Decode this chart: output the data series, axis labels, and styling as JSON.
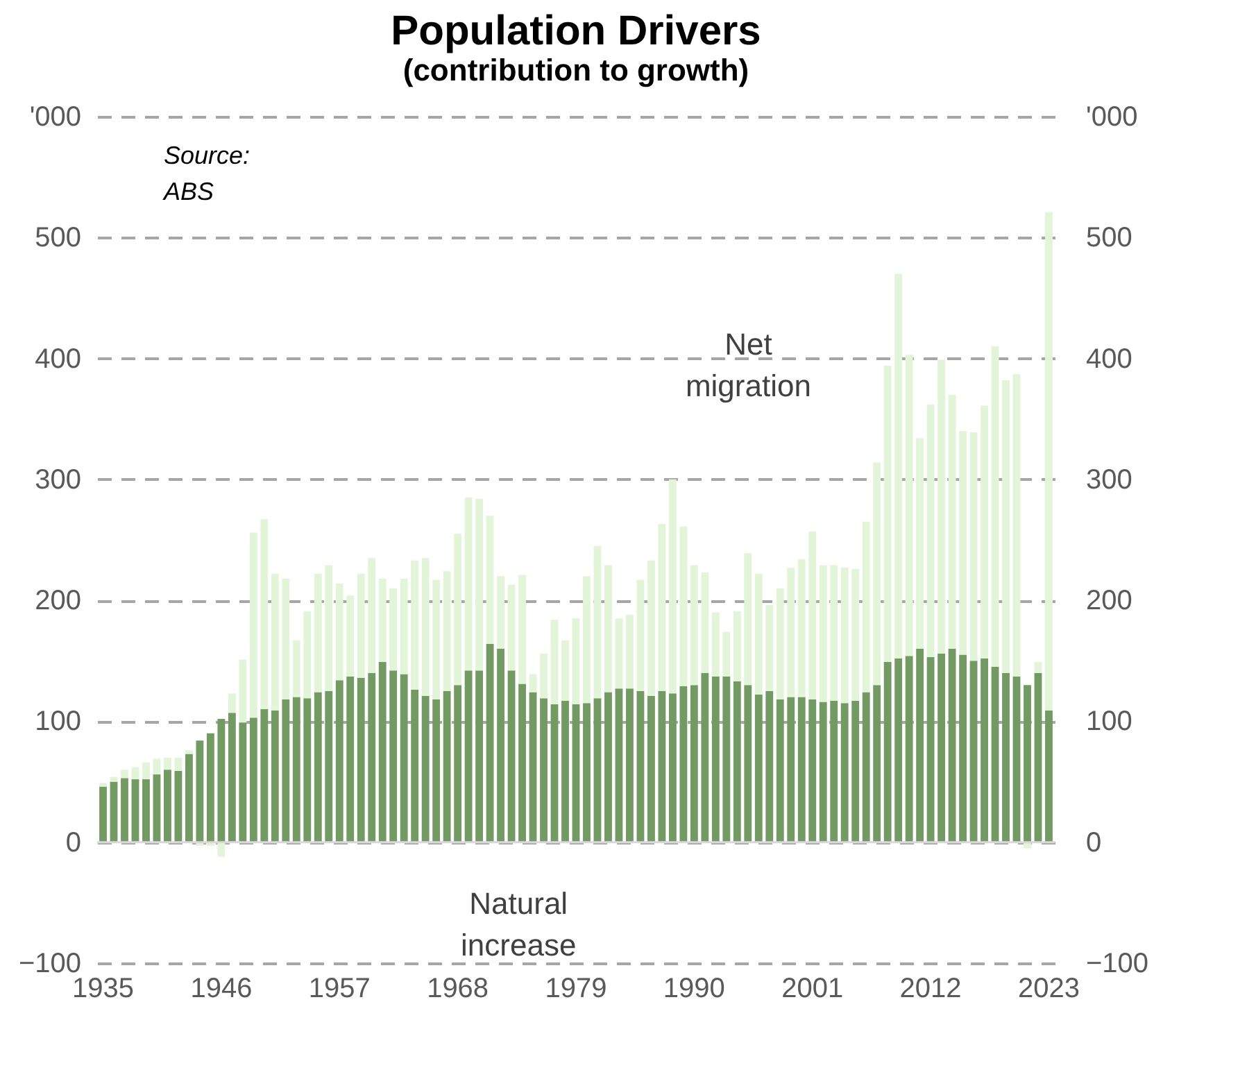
{
  "chart_data": {
    "type": "bar",
    "title": "Population Drivers",
    "subtitle": "(contribution to growth)",
    "categories": [
      "1935",
      null,
      null,
      null,
      null,
      null,
      null,
      null,
      null,
      null,
      null,
      "1946",
      null,
      null,
      null,
      null,
      null,
      null,
      null,
      null,
      null,
      null,
      "1957",
      null,
      null,
      null,
      null,
      null,
      null,
      null,
      null,
      null,
      null,
      "1968",
      null,
      null,
      null,
      null,
      null,
      null,
      null,
      null,
      null,
      null,
      "1979",
      null,
      null,
      null,
      null,
      null,
      null,
      null,
      null,
      null,
      null,
      "1990",
      null,
      null,
      null,
      null,
      null,
      null,
      null,
      null,
      null,
      null,
      "2001",
      null,
      null,
      null,
      null,
      null,
      null,
      null,
      null,
      null,
      null,
      "2012",
      null,
      null,
      null,
      null,
      null,
      null,
      null,
      null,
      null,
      null,
      "2023"
    ],
    "stacked": true,
    "series": [
      {
        "name": "Natural increase",
        "color": "#739a63",
        "values": [
          46,
          50,
          53,
          52,
          52,
          56,
          60,
          59,
          73,
          84,
          90,
          102,
          107,
          99,
          103,
          110,
          109,
          118,
          120,
          119,
          124,
          125,
          134,
          137,
          136,
          140,
          149,
          142,
          139,
          126,
          121,
          118,
          125,
          130,
          142,
          142,
          164,
          160,
          142,
          131,
          124,
          119,
          114,
          117,
          114,
          115,
          119,
          124,
          127,
          127,
          125,
          121,
          125,
          123,
          129,
          130,
          140,
          137,
          137,
          133,
          130,
          122,
          125,
          118,
          120,
          120,
          118,
          116,
          117,
          115,
          117,
          124,
          130,
          149,
          152,
          154,
          160,
          153,
          156,
          160,
          155,
          150,
          152,
          145,
          140,
          137,
          130,
          140,
          109
        ]
      },
      {
        "name": "Net migration",
        "color": "#e2f5d8",
        "values": [
          3,
          4,
          7,
          10,
          14,
          13,
          10,
          11,
          3,
          -3,
          -3,
          -12,
          16,
          52,
          153,
          157,
          113,
          100,
          47,
          72,
          98,
          104,
          80,
          67,
          86,
          95,
          69,
          68,
          79,
          107,
          114,
          99,
          99,
          125,
          143,
          142,
          106,
          60,
          71,
          90,
          15,
          37,
          70,
          50,
          71,
          105,
          126,
          105,
          58,
          61,
          92,
          112,
          138,
          177,
          132,
          99,
          83,
          53,
          37,
          58,
          109,
          100,
          71,
          92,
          107,
          114,
          139,
          113,
          112,
          112,
          109,
          141,
          184,
          245,
          318,
          249,
          174,
          209,
          243,
          210,
          185,
          189,
          209,
          265,
          242,
          250,
          -5,
          9,
          412
        ]
      }
    ],
    "ylabel": "'000",
    "y2label": "'000",
    "ylim": [
      -100,
      600
    ],
    "yticks": [
      -100,
      0,
      100,
      200,
      300,
      400,
      500,
      {
        "value": 600,
        "label": null
      }
    ],
    "y2lim": [
      -100,
      600
    ],
    "y2ticks": [
      -100,
      0,
      100,
      200,
      300,
      400,
      500
    ],
    "grid": "y",
    "legend": false,
    "ref_lines": [
      {
        "axis": "y",
        "value": 0,
        "color": "#d9d9d9"
      }
    ],
    "annotations": [
      "Source: ABS"
    ]
  }
}
